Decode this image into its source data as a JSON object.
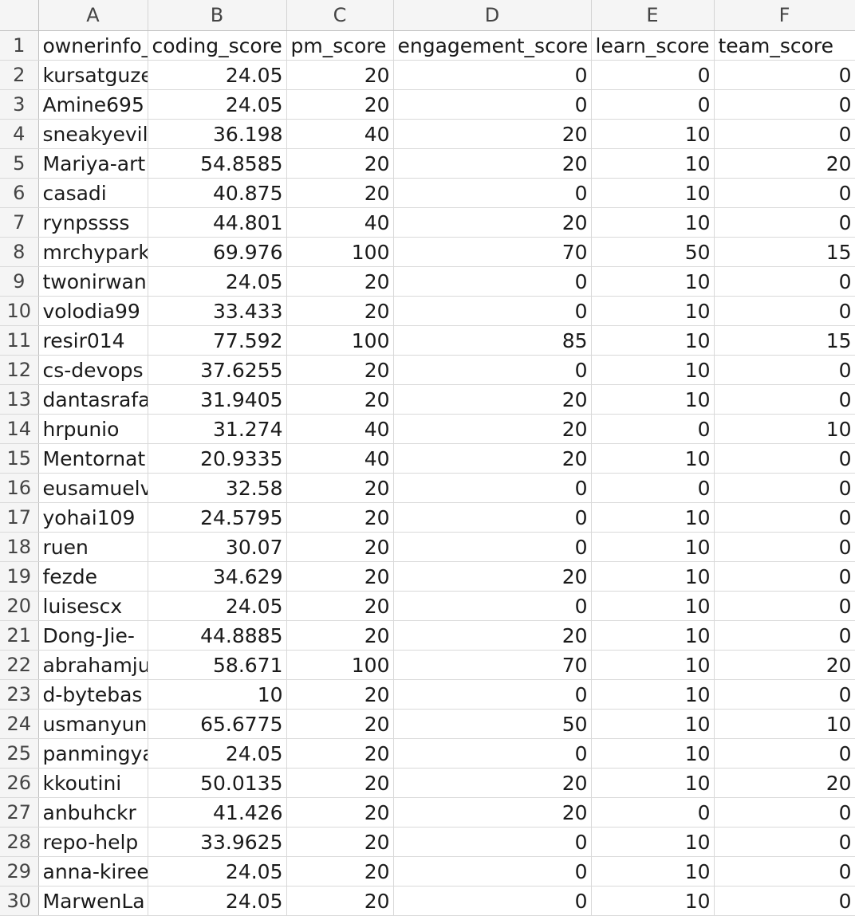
{
  "spreadsheet": {
    "column_letters": [
      "A",
      "B",
      "C",
      "D",
      "E",
      "F"
    ],
    "rows": [
      {
        "n": "1",
        "cells": [
          "ownerinfo_",
          "coding_score",
          "pm_score",
          "engagement_score",
          "learn_score",
          "team_score"
        ]
      },
      {
        "n": "2",
        "cells": [
          "kursatguze",
          "24.05",
          "20",
          "0",
          "0",
          "0"
        ]
      },
      {
        "n": "3",
        "cells": [
          "Amine695",
          "24.05",
          "20",
          "0",
          "0",
          "0"
        ]
      },
      {
        "n": "4",
        "cells": [
          "sneakyevilS",
          "36.198",
          "40",
          "20",
          "10",
          "0"
        ]
      },
      {
        "n": "5",
        "cells": [
          "Mariya-art",
          "54.8585",
          "20",
          "20",
          "10",
          "20"
        ]
      },
      {
        "n": "6",
        "cells": [
          "casadi",
          "40.875",
          "20",
          "0",
          "10",
          "0"
        ]
      },
      {
        "n": "7",
        "cells": [
          "rynpssss",
          "44.801",
          "40",
          "20",
          "10",
          "0"
        ]
      },
      {
        "n": "8",
        "cells": [
          "mrchypark",
          "69.976",
          "100",
          "70",
          "50",
          "15"
        ]
      },
      {
        "n": "9",
        "cells": [
          "twonirwana",
          "24.05",
          "20",
          "0",
          "10",
          "0"
        ]
      },
      {
        "n": "10",
        "cells": [
          "volodia99",
          "33.433",
          "20",
          "0",
          "10",
          "0"
        ]
      },
      {
        "n": "11",
        "cells": [
          "resir014",
          "77.592",
          "100",
          "85",
          "10",
          "15"
        ]
      },
      {
        "n": "12",
        "cells": [
          "cs-devops",
          "37.6255",
          "20",
          "0",
          "10",
          "0"
        ]
      },
      {
        "n": "13",
        "cells": [
          "dantasrafa",
          "31.9405",
          "20",
          "20",
          "10",
          "0"
        ]
      },
      {
        "n": "14",
        "cells": [
          "hrpunio",
          "31.274",
          "40",
          "20",
          "0",
          "10"
        ]
      },
      {
        "n": "15",
        "cells": [
          "Mentornat",
          "20.9335",
          "40",
          "20",
          "10",
          "0"
        ]
      },
      {
        "n": "16",
        "cells": [
          "eusamuelv",
          "32.58",
          "20",
          "0",
          "0",
          "0"
        ]
      },
      {
        "n": "17",
        "cells": [
          "yohai109",
          "24.5795",
          "20",
          "0",
          "10",
          "0"
        ]
      },
      {
        "n": "18",
        "cells": [
          "ruen",
          "30.07",
          "20",
          "0",
          "10",
          "0"
        ]
      },
      {
        "n": "19",
        "cells": [
          "fezde",
          "34.629",
          "20",
          "20",
          "10",
          "0"
        ]
      },
      {
        "n": "20",
        "cells": [
          "luisescx",
          "24.05",
          "20",
          "0",
          "10",
          "0"
        ]
      },
      {
        "n": "21",
        "cells": [
          "Dong-Jie-",
          "44.8885",
          "20",
          "20",
          "10",
          "0"
        ]
      },
      {
        "n": "22",
        "cells": [
          "abrahamju",
          "58.671",
          "100",
          "70",
          "10",
          "20"
        ]
      },
      {
        "n": "23",
        "cells": [
          "d-bytebas",
          "10",
          "20",
          "0",
          "10",
          "0"
        ]
      },
      {
        "n": "24",
        "cells": [
          "usmanyun",
          "65.6775",
          "20",
          "50",
          "10",
          "10"
        ]
      },
      {
        "n": "25",
        "cells": [
          "panmingya",
          "24.05",
          "20",
          "0",
          "10",
          "0"
        ]
      },
      {
        "n": "26",
        "cells": [
          "kkoutini",
          "50.0135",
          "20",
          "20",
          "10",
          "20"
        ]
      },
      {
        "n": "27",
        "cells": [
          "anbuhckr",
          "41.426",
          "20",
          "20",
          "0",
          "0"
        ]
      },
      {
        "n": "28",
        "cells": [
          "repo-help",
          "33.9625",
          "20",
          "0",
          "10",
          "0"
        ]
      },
      {
        "n": "29",
        "cells": [
          "anna-kiree",
          "24.05",
          "20",
          "0",
          "10",
          "0"
        ]
      },
      {
        "n": "30",
        "cells": [
          "MarwenLa",
          "24.05",
          "20",
          "0",
          "10",
          "0"
        ]
      }
    ]
  }
}
